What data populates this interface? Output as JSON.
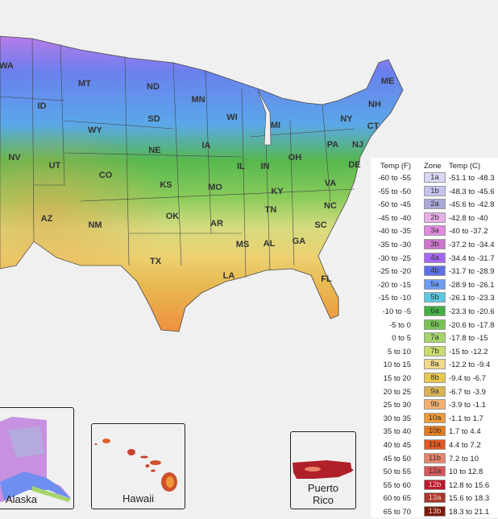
{
  "states": [
    {
      "abbr": "WA"
    },
    {
      "abbr": "MT"
    },
    {
      "abbr": "ND"
    },
    {
      "abbr": "MN"
    },
    {
      "abbr": "ME"
    },
    {
      "abbr": "ID"
    },
    {
      "abbr": "WY"
    },
    {
      "abbr": "SD"
    },
    {
      "abbr": "WI"
    },
    {
      "abbr": "MI"
    },
    {
      "abbr": "NY"
    },
    {
      "abbr": "NH"
    },
    {
      "abbr": "CT"
    },
    {
      "abbr": "NV"
    },
    {
      "abbr": "UT"
    },
    {
      "abbr": "CO"
    },
    {
      "abbr": "NE"
    },
    {
      "abbr": "IA"
    },
    {
      "abbr": "IL"
    },
    {
      "abbr": "IN"
    },
    {
      "abbr": "OH"
    },
    {
      "abbr": "PA"
    },
    {
      "abbr": "NJ"
    },
    {
      "abbr": "DE"
    },
    {
      "abbr": "KS"
    },
    {
      "abbr": "MO"
    },
    {
      "abbr": "KY"
    },
    {
      "abbr": "VA"
    },
    {
      "abbr": "AZ"
    },
    {
      "abbr": "NM"
    },
    {
      "abbr": "OK"
    },
    {
      "abbr": "AR"
    },
    {
      "abbr": "TN"
    },
    {
      "abbr": "NC"
    },
    {
      "abbr": "SC"
    },
    {
      "abbr": "TX"
    },
    {
      "abbr": "MS"
    },
    {
      "abbr": "AL"
    },
    {
      "abbr": "GA"
    },
    {
      "abbr": "LA"
    },
    {
      "abbr": "FL"
    }
  ],
  "insets": {
    "alaska": "Alaska",
    "hawaii": "Hawaii",
    "puerto_rico_line1": "Puerto",
    "puerto_rico_line2": "Rico"
  },
  "legend": {
    "header_f": "Temp (F)",
    "header_zone": "Zone",
    "header_c": "Temp (C)",
    "rows": [
      {
        "f": "-60 to -55",
        "zone": "1a",
        "c": "-51.1 to -48.3",
        "color": "#d8d8f5"
      },
      {
        "f": "-55 to -50",
        "zone": "1b",
        "c": "-48.3 to -45.6",
        "color": "#c4c4ee"
      },
      {
        "f": "-50 to -45",
        "zone": "2a",
        "c": "-45.6 to -42.8",
        "color": "#a9a9d8"
      },
      {
        "f": "-45 to -40",
        "zone": "2b",
        "c": "-42.8 to -40",
        "color": "#e8aee8"
      },
      {
        "f": "-40 to -35",
        "zone": "3a",
        "c": "-40 to -37.2",
        "color": "#e08ae0"
      },
      {
        "f": "-35 to -30",
        "zone": "3b",
        "c": "-37.2 to -34.4",
        "color": "#cc77cc"
      },
      {
        "f": "-30 to -25",
        "zone": "4a",
        "c": "-34.4 to -31.7",
        "color": "#a566f5"
      },
      {
        "f": "-25 to -20",
        "zone": "4b",
        "c": "-31.7 to -28.9",
        "color": "#5e70e8"
      },
      {
        "f": "-20 to -15",
        "zone": "5a",
        "c": "-28.9 to -26.1",
        "color": "#6e9ef8"
      },
      {
        "f": "-15 to -10",
        "zone": "5b",
        "c": "-26.1 to -23.3",
        "color": "#5cc8e0"
      },
      {
        "f": "-10 to -5",
        "zone": "6a",
        "c": "-23.3 to -20.6",
        "color": "#44b044"
      },
      {
        "f": "-5 to 0",
        "zone": "6b",
        "c": "-20.6 to -17.8",
        "color": "#77c455"
      },
      {
        "f": "0 to 5",
        "zone": "7a",
        "c": "-17.8 to -15",
        "color": "#a6d46a"
      },
      {
        "f": "5 to 10",
        "zone": "7b",
        "c": "-15 to -12.2",
        "color": "#c8dc70"
      },
      {
        "f": "10 to 15",
        "zone": "8a",
        "c": "-12.2 to -9.4",
        "color": "#efd88a"
      },
      {
        "f": "15 to 20",
        "zone": "8b",
        "c": "-9.4 to -6.7",
        "color": "#e8c84e"
      },
      {
        "f": "20 to 25",
        "zone": "9a",
        "c": "-6.7 to -3.9",
        "color": "#d9b455"
      },
      {
        "f": "25 to 30",
        "zone": "9b",
        "c": "-3.9 to -1.1",
        "color": "#f5b070"
      },
      {
        "f": "30 to 35",
        "zone": "10a",
        "c": "-1.1 to 1.7",
        "color": "#ef9a3a"
      },
      {
        "f": "35 to 40",
        "zone": "10b",
        "c": "1.7 to 4.4",
        "color": "#e67a1e"
      },
      {
        "f": "40 to 45",
        "zone": "11a",
        "c": "4.4 to 7.2",
        "color": "#e45822"
      },
      {
        "f": "45 to 50",
        "zone": "11b",
        "c": "7.2 to 10",
        "color": "#e8846a"
      },
      {
        "f": "50 to 55",
        "zone": "12a",
        "c": "10 to 12.8",
        "color": "#d85858"
      },
      {
        "f": "55 to 60",
        "zone": "12b",
        "c": "12.8 to 15.6",
        "color": "#c01830"
      },
      {
        "f": "60 to 65",
        "zone": "13a",
        "c": "15.6 to 18.3",
        "color": "#a83428"
      },
      {
        "f": "65 to 70",
        "zone": "13b",
        "c": "18.3 to 21.1",
        "color": "#7a1a0a"
      }
    ]
  }
}
